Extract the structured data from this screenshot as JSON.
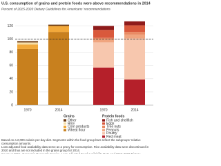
{
  "chart_data": {
    "type": "bar",
    "stacked": true,
    "title": "U.S. consumption of grains and protein foods were above recommendations in 2014",
    "subtitle": "Percent of 2015-2020 Dietary Guidelines for Americans' recommendations",
    "ylim": [
      0,
      130
    ],
    "yticks": [
      0,
      20,
      40,
      60,
      80,
      100,
      120
    ],
    "grid": true,
    "recommendation_line": 100,
    "groups": [
      {
        "name": "Grains",
        "categories": [
          "1970",
          "2014"
        ],
        "series": [
          {
            "name": "Other",
            "color": "#6b3a12",
            "values": [
              2,
              2
            ]
          },
          {
            "name": "Rice",
            "color": "#f7dfa8",
            "values": [
              3,
              null
            ]
          },
          {
            "name": "Corn products",
            "color": "#f2a93b",
            "values": [
              7,
              9
            ]
          },
          {
            "name": "Wheat flour",
            "color": "#c8801e",
            "values": [
              85,
              111
            ]
          }
        ]
      },
      {
        "name": "Protein foods",
        "categories": [
          "1970",
          "2014"
        ],
        "series": [
          {
            "name": "Fish and shellfish",
            "color": "#8e1b1b",
            "values": [
              6,
              6
            ]
          },
          {
            "name": "Eggs",
            "color": "#d9593c",
            "values": [
              12,
              10
            ]
          },
          {
            "name": "Tree nuts",
            "color": "#e98a63",
            "values": [
              2,
              4
            ]
          },
          {
            "name": "Peanuts",
            "color": "#f0a57f",
            "values": [
              5,
              6
            ]
          },
          {
            "name": "Poultry",
            "color": "#f7c7ae",
            "values": [
              38,
              62
            ]
          },
          {
            "name": "Red meat",
            "color": "#b5202a",
            "values": [
              57,
              39
            ]
          }
        ]
      }
    ],
    "notes": [
      "Based on a 2,000-calorie-per-day diet. Segments within the food-group bars reflect the subgroups' relative consumption amounts.",
      "Loss-adjusted food availability data serve as a proxy for consumption. Rice availability data were discontinued in 2010 and thus are not included in the grains group for 2014.",
      "Source: USDA, Economic Research Service, Loss-Adjusted Food Availability Data and 2015-2020 Dietary Guidelines for Americans."
    ]
  }
}
